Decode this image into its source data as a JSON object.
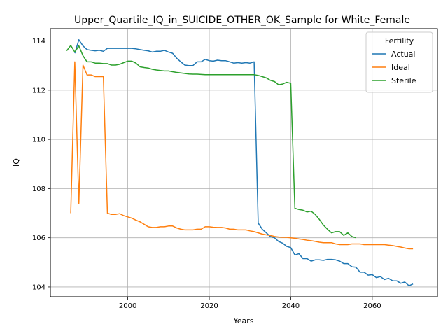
{
  "chart_data": {
    "type": "line",
    "title": "Upper_Quartile_IQ_in_SUICIDE_OTHER_OK_Sample for White_Female",
    "xlabel": "Years",
    "ylabel": "IQ",
    "xlim": [
      1981,
      2076
    ],
    "ylim": [
      103.6,
      114.5
    ],
    "xticks": [
      2000,
      2020,
      2040,
      2060
    ],
    "yticks": [
      104,
      106,
      108,
      110,
      112,
      114
    ],
    "grid": true,
    "legend": {
      "title": "Fertility",
      "placement": "top-right"
    },
    "series": [
      {
        "name": "Actual",
        "color": "#1f77b4",
        "x": [
          1987,
          1988,
          1989,
          1990,
          1991,
          1992,
          1993,
          1994,
          1995,
          1996,
          1997,
          1998,
          1999,
          2000,
          2001,
          2002,
          2003,
          2004,
          2005,
          2006,
          2007,
          2008,
          2009,
          2010,
          2011,
          2012,
          2013,
          2014,
          2015,
          2016,
          2017,
          2018,
          2019,
          2020,
          2021,
          2022,
          2023,
          2024,
          2025,
          2026,
          2027,
          2028,
          2029,
          2030,
          2031,
          2032,
          2033,
          2034,
          2035,
          2036,
          2037,
          2038,
          2039,
          2040,
          2041,
          2042,
          2043,
          2044,
          2045,
          2046,
          2047,
          2048,
          2049,
          2050,
          2051,
          2052,
          2053,
          2054,
          2055,
          2056,
          2057,
          2058,
          2059,
          2060,
          2061,
          2062,
          2063,
          2064,
          2065,
          2066,
          2067,
          2068,
          2069,
          2070
        ],
        "y": [
          113.5,
          114.05,
          113.8,
          113.65,
          113.62,
          113.6,
          113.62,
          113.58,
          113.7,
          113.7,
          113.7,
          113.7,
          113.7,
          113.7,
          113.7,
          113.68,
          113.65,
          113.62,
          113.6,
          113.55,
          113.58,
          113.58,
          113.62,
          113.55,
          113.5,
          113.3,
          113.15,
          113.02,
          113.0,
          113.0,
          113.15,
          113.15,
          113.25,
          113.2,
          113.18,
          113.22,
          113.2,
          113.2,
          113.15,
          113.1,
          113.12,
          113.1,
          113.12,
          113.1,
          113.15,
          106.6,
          106.35,
          106.2,
          106.05,
          106.0,
          105.85,
          105.78,
          105.65,
          105.6,
          105.3,
          105.35,
          105.15,
          105.15,
          105.05,
          105.1,
          105.1,
          105.08,
          105.12,
          105.12,
          105.1,
          105.05,
          104.95,
          104.95,
          104.82,
          104.8,
          104.6,
          104.6,
          104.48,
          104.5,
          104.38,
          104.42,
          104.3,
          104.35,
          104.25,
          104.25,
          104.15,
          104.2,
          104.05,
          104.12
        ]
      },
      {
        "name": "Ideal",
        "color": "#ff7f0e",
        "x": [
          1986,
          1987,
          1988,
          1989,
          1990,
          1991,
          1992,
          1993,
          1994,
          1995,
          1996,
          1997,
          1998,
          1999,
          2000,
          2001,
          2002,
          2003,
          2004,
          2005,
          2006,
          2007,
          2008,
          2009,
          2010,
          2011,
          2012,
          2013,
          2014,
          2015,
          2016,
          2017,
          2018,
          2019,
          2020,
          2021,
          2022,
          2023,
          2024,
          2025,
          2026,
          2027,
          2028,
          2029,
          2030,
          2031,
          2032,
          2033,
          2034,
          2035,
          2036,
          2037,
          2038,
          2039,
          2040,
          2041,
          2042,
          2043,
          2044,
          2045,
          2046,
          2047,
          2048,
          2049,
          2050,
          2051,
          2052,
          2053,
          2054,
          2055,
          2056,
          2057,
          2058,
          2059,
          2060,
          2061,
          2062,
          2063,
          2064,
          2065,
          2066,
          2067,
          2068,
          2069,
          2070
        ],
        "y": [
          107.0,
          113.15,
          107.4,
          113.02,
          112.62,
          112.62,
          112.55,
          112.55,
          112.55,
          107.0,
          106.95,
          106.95,
          106.98,
          106.9,
          106.85,
          106.8,
          106.72,
          106.65,
          106.55,
          106.45,
          106.42,
          106.42,
          106.45,
          106.45,
          106.48,
          106.48,
          106.4,
          106.35,
          106.32,
          106.32,
          106.32,
          106.35,
          106.35,
          106.45,
          106.45,
          106.43,
          106.42,
          106.42,
          106.4,
          106.35,
          106.35,
          106.32,
          106.32,
          106.32,
          106.28,
          106.25,
          106.2,
          106.15,
          106.12,
          106.1,
          106.05,
          106.03,
          106.02,
          106.02,
          106.0,
          105.98,
          105.95,
          105.93,
          105.9,
          105.88,
          105.85,
          105.82,
          105.8,
          105.8,
          105.8,
          105.75,
          105.72,
          105.72,
          105.72,
          105.75,
          105.75,
          105.75,
          105.72,
          105.72,
          105.72,
          105.72,
          105.72,
          105.72,
          105.7,
          105.68,
          105.65,
          105.62,
          105.58,
          105.55,
          105.55
        ]
      },
      {
        "name": "Sterile",
        "color": "#2ca02c",
        "x": [
          1985,
          1986,
          1987,
          1988,
          1989,
          1990,
          1991,
          1992,
          1993,
          1994,
          1995,
          1996,
          1997,
          1998,
          1999,
          2000,
          2001,
          2002,
          2003,
          2004,
          2005,
          2006,
          2007,
          2008,
          2009,
          2010,
          2011,
          2012,
          2013,
          2014,
          2015,
          2016,
          2017,
          2018,
          2019,
          2020,
          2021,
          2022,
          2023,
          2024,
          2025,
          2026,
          2027,
          2028,
          2029,
          2030,
          2031,
          2032,
          2033,
          2034,
          2035,
          2036,
          2037,
          2038,
          2039,
          2040,
          2041,
          2042,
          2043,
          2044,
          2045,
          2046,
          2047,
          2048,
          2049,
          2050,
          2051,
          2052,
          2053,
          2054,
          2055,
          2056
        ],
        "y": [
          113.6,
          113.82,
          113.55,
          113.8,
          113.4,
          113.15,
          113.15,
          113.1,
          113.1,
          113.08,
          113.08,
          113.02,
          113.02,
          113.05,
          113.12,
          113.18,
          113.18,
          113.1,
          112.95,
          112.92,
          112.9,
          112.85,
          112.82,
          112.8,
          112.78,
          112.78,
          112.75,
          112.72,
          112.7,
          112.68,
          112.66,
          112.65,
          112.65,
          112.64,
          112.63,
          112.63,
          112.63,
          112.63,
          112.63,
          112.63,
          112.63,
          112.63,
          112.63,
          112.63,
          112.63,
          112.63,
          112.63,
          112.6,
          112.55,
          112.5,
          112.4,
          112.35,
          112.22,
          112.25,
          112.32,
          112.28,
          107.2,
          107.15,
          107.12,
          107.05,
          107.08,
          106.95,
          106.75,
          106.52,
          106.35,
          106.2,
          106.25,
          106.25,
          106.1,
          106.2,
          106.05,
          106.0
        ]
      }
    ]
  }
}
